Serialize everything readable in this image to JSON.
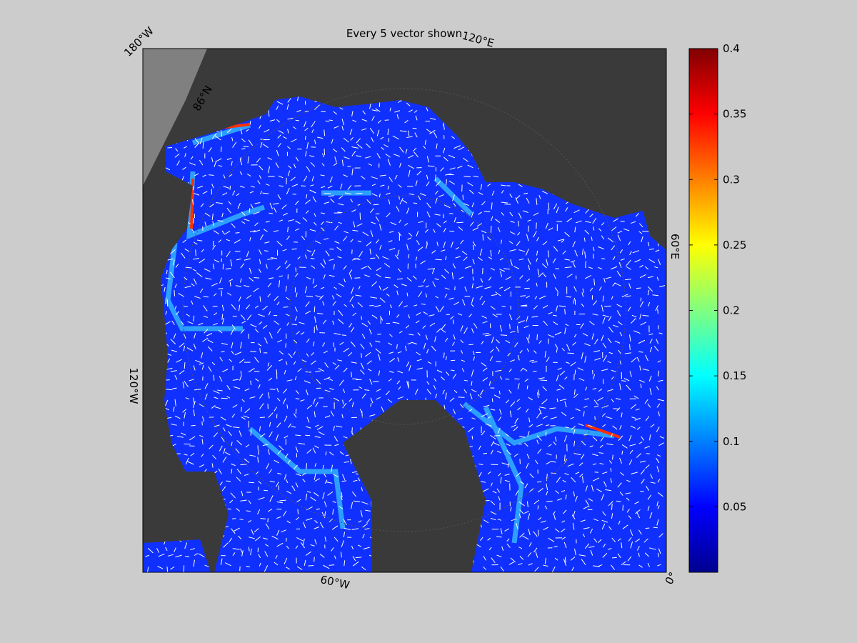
{
  "map": {
    "title": "Every 5 vector shown",
    "lon_labels": [
      "180°W",
      "120°E",
      "60°E",
      "0°",
      "60°W",
      "120°W"
    ],
    "lat_labels": [
      "86°N"
    ],
    "colorbar": {
      "colormap": "jet",
      "lim": [
        0,
        0.4
      ],
      "ticks": [
        0.05,
        0.1,
        0.15,
        0.2,
        0.25,
        0.3,
        0.35,
        0.4
      ]
    }
  }
}
